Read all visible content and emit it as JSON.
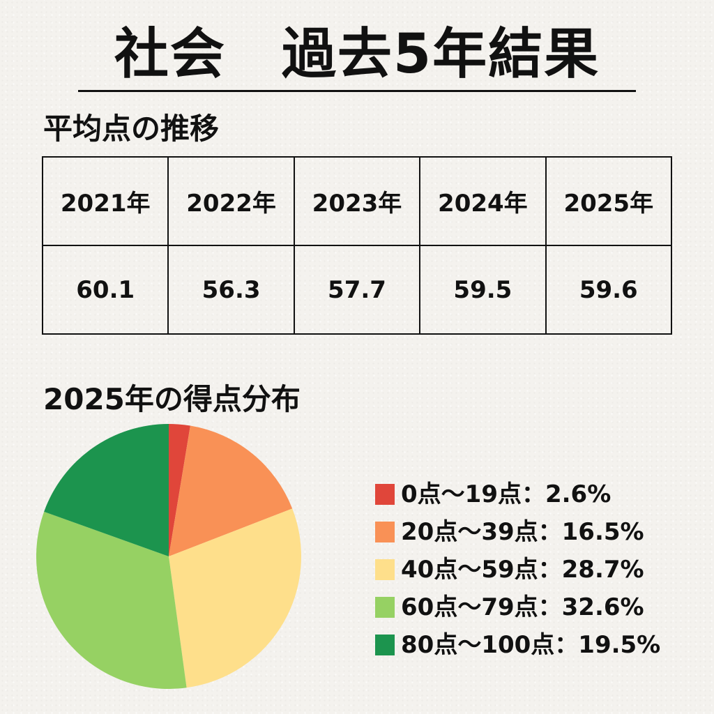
{
  "title": "社会　過去5年結果",
  "average_section": {
    "heading": "平均点の推移",
    "years": [
      "2021年",
      "2022年",
      "2023年",
      "2024年",
      "2025年"
    ],
    "averages": [
      "60.1",
      "56.3",
      "57.7",
      "59.5",
      "59.6"
    ]
  },
  "distribution_section": {
    "heading": "2025年の得点分布"
  },
  "chart_data": {
    "type": "pie",
    "title": "2025年の得点分布",
    "start_angle": "12 o'clock",
    "direction": "clockwise",
    "legend_position": "right",
    "slices": [
      {
        "label": "0点～19点：2.6%",
        "category": "0点～19点",
        "value": 2.6,
        "color": "#e0463a"
      },
      {
        "label": "20点～39点：16.5%",
        "category": "20点～39点",
        "value": 16.5,
        "color": "#f99156"
      },
      {
        "label": "40点～59点：28.7%",
        "category": "40点～59点",
        "value": 28.7,
        "color": "#fedf8b"
      },
      {
        "label": "60点～79点：32.6%",
        "category": "60点～79点",
        "value": 32.6,
        "color": "#96d163"
      },
      {
        "label": "80点～100点：19.5%",
        "category": "80点～100点",
        "value": 19.5,
        "color": "#1c944e"
      }
    ]
  }
}
